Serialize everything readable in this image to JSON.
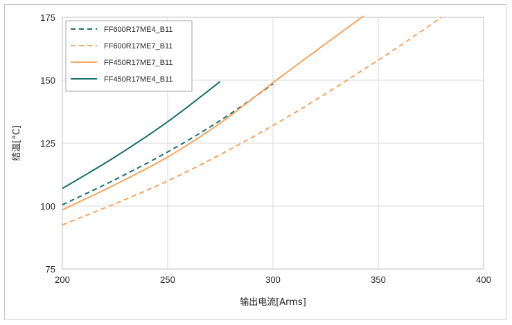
{
  "chart_data": {
    "type": "line",
    "xlabel": "输出电流[Arms]",
    "ylabel": "结温[°C]",
    "xlim": [
      200,
      400
    ],
    "ylim": [
      75,
      175
    ],
    "xticks": [
      "200",
      "250",
      "300",
      "350",
      "400"
    ],
    "yticks": [
      "75",
      "100",
      "125",
      "150",
      "175"
    ],
    "grid": true,
    "legend_position": "top-left",
    "series": [
      {
        "name": "FF600R17ME4_B11",
        "color": "#156f6c",
        "dash": "dashed",
        "x": [
          200,
          225,
          250,
          275,
          300
        ],
        "y": [
          100.5,
          110.5,
          121.5,
          134,
          148.5
        ]
      },
      {
        "name": "FF600R17ME7_B11",
        "color": "#f6a35c",
        "dash": "dashed",
        "x": [
          200,
          250,
          300,
          350,
          380
        ],
        "y": [
          92.5,
          110,
          132,
          158,
          175
        ]
      },
      {
        "name": "FF450R17ME7_B11",
        "color": "#f6a35c",
        "dash": "solid",
        "x": [
          200,
          225,
          250,
          275,
          300,
          325,
          343
        ],
        "y": [
          98.5,
          108.5,
          119.5,
          133,
          149,
          164.5,
          175.5
        ]
      },
      {
        "name": "FF450R17ME4_B11",
        "color": "#156f6c",
        "dash": "solid",
        "x": [
          200,
          225,
          250,
          275
        ],
        "y": [
          107,
          119.5,
          133.5,
          149.5
        ]
      }
    ]
  }
}
